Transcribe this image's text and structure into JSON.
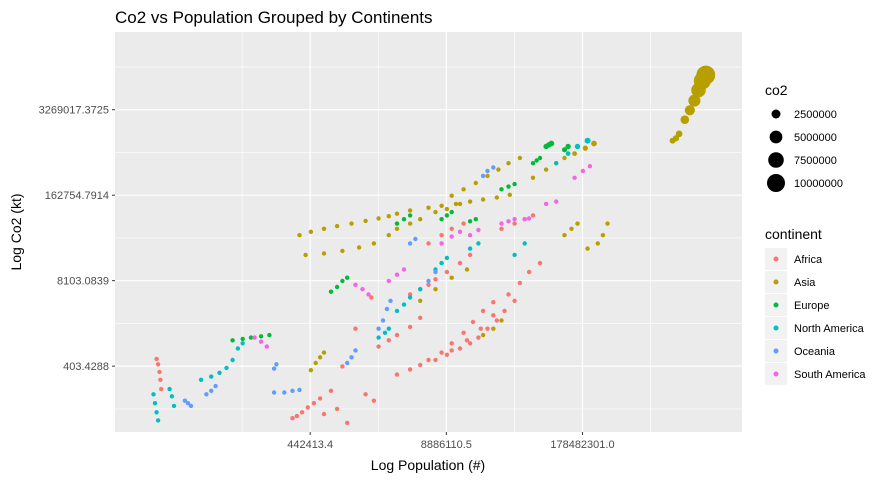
{
  "chart_data": {
    "type": "scatter",
    "title": "Co2 vs Population Grouped by Continents",
    "xlabel": "Log Population (#)",
    "ylabel": "Log Co2 (kt)",
    "x_scale": "log",
    "y_scale": "log",
    "xlim": [
      6000,
      6000000000
    ],
    "ylim": [
      40,
      50000000
    ],
    "x_ticks": [
      {
        "value": 442413.4,
        "label": "442413.4"
      },
      {
        "value": 8886110.5,
        "label": "8886110.5"
      },
      {
        "value": 178482301.0,
        "label": "178482301.0"
      }
    ],
    "y_ticks": [
      {
        "value": 403.4288,
        "label": "403.4288"
      },
      {
        "value": 8103.0839,
        "label": "8103.0839"
      },
      {
        "value": 162754.7914,
        "label": "162754.7914"
      },
      {
        "value": 3269017.3725,
        "label": "3269017.3725"
      }
    ],
    "grid": true,
    "size_legend": {
      "title": "co2",
      "entries": [
        {
          "value": 2500000,
          "label": "2500000"
        },
        {
          "value": 5000000,
          "label": "5000000"
        },
        {
          "value": 7500000,
          "label": "7500000"
        },
        {
          "value": 10000000,
          "label": "10000000"
        }
      ]
    },
    "color_legend": {
      "title": "continent",
      "placement": "right"
    },
    "series": [
      {
        "name": "Africa",
        "color": "#F8766D",
        "points": [
          [
            15000,
            520
          ],
          [
            15500,
            430
          ],
          [
            16000,
            330
          ],
          [
            16300,
            250
          ],
          [
            16600,
            180
          ],
          [
            300000,
            65
          ],
          [
            330000,
            70
          ],
          [
            370000,
            80
          ],
          [
            420000,
            95
          ],
          [
            480000,
            110
          ],
          [
            550000,
            130
          ],
          [
            700000,
            170
          ],
          [
            900000,
            400
          ],
          [
            1200000,
            1500
          ],
          [
            1700000,
            4500
          ],
          [
            2000000,
            800
          ],
          [
            2500000,
            1000
          ],
          [
            3000000,
            1200
          ],
          [
            4000000,
            1600
          ],
          [
            5000000,
            2200
          ],
          [
            3000000,
            300
          ],
          [
            4000000,
            360
          ],
          [
            5000000,
            420
          ],
          [
            6000000,
            500
          ],
          [
            8000000,
            650
          ],
          [
            10000000,
            900
          ],
          [
            13000000,
            1300
          ],
          [
            16000000,
            1900
          ],
          [
            20000000,
            2800
          ],
          [
            25000000,
            3800
          ],
          [
            7000000,
            500
          ],
          [
            9000000,
            600
          ],
          [
            12000000,
            750
          ],
          [
            15000000,
            900
          ],
          [
            18000000,
            1100
          ],
          [
            22000000,
            1500
          ],
          [
            27000000,
            2000
          ],
          [
            32000000,
            2800
          ],
          [
            40000000,
            4000
          ],
          [
            10000000,
            700
          ],
          [
            14000000,
            1000
          ],
          [
            19000000,
            1500
          ],
          [
            25000000,
            2400
          ],
          [
            35000000,
            5000
          ],
          [
            45000000,
            7500
          ],
          [
            55000000,
            11000
          ],
          [
            70000000,
            15000
          ],
          [
            4000000,
            5000
          ],
          [
            5000000,
            6000
          ],
          [
            6000000,
            7000
          ],
          [
            7000000,
            8500
          ],
          [
            9000000,
            11000
          ],
          [
            12000000,
            15000
          ],
          [
            15000000,
            20000
          ],
          [
            1500000,
            150
          ],
          [
            1800000,
            120
          ],
          [
            800000,
            90
          ],
          [
            600000,
            75
          ],
          [
            1000000,
            55
          ],
          [
            6000000,
            30000
          ],
          [
            8000000,
            40000
          ],
          [
            10000000,
            50000
          ],
          [
            13000000,
            60000
          ],
          [
            30000000,
            50000
          ],
          [
            40000000,
            60000
          ],
          [
            50000000,
            70000
          ],
          [
            60000000,
            80000
          ]
        ]
      },
      {
        "name": "Asia",
        "color": "#B79F00",
        "points": [
          [
            350000,
            40000
          ],
          [
            450000,
            45000
          ],
          [
            600000,
            50000
          ],
          [
            800000,
            55000
          ],
          [
            1100000,
            60000
          ],
          [
            1500000,
            66000
          ],
          [
            2000000,
            72000
          ],
          [
            2500000,
            78000
          ],
          [
            3000000,
            85000
          ],
          [
            400000,
            20000
          ],
          [
            600000,
            21000
          ],
          [
            900000,
            23000
          ],
          [
            1300000,
            26000
          ],
          [
            1800000,
            30000
          ],
          [
            4000000,
            95000
          ],
          [
            6000000,
            105000
          ],
          [
            8000000,
            112000
          ],
          [
            11000000,
            120000
          ],
          [
            15000000,
            130000
          ],
          [
            20000000,
            140000
          ],
          [
            27000000,
            150000
          ],
          [
            36000000,
            165000
          ],
          [
            450000,
            350
          ],
          [
            500000,
            450
          ],
          [
            550000,
            550
          ],
          [
            600000,
            650
          ],
          [
            2500000,
            40000
          ],
          [
            3000000,
            50000
          ],
          [
            4000000,
            60000
          ],
          [
            5000000,
            70000
          ],
          [
            7000000,
            90000
          ],
          [
            9000000,
            100000
          ],
          [
            12000000,
            120000
          ],
          [
            10000000,
            160000
          ],
          [
            13000000,
            200000
          ],
          [
            17000000,
            250000
          ],
          [
            22000000,
            320000
          ],
          [
            28000000,
            400000
          ],
          [
            35000000,
            500000
          ],
          [
            45000000,
            600000
          ],
          [
            60000000,
            300000
          ],
          [
            80000000,
            400000
          ],
          [
            100000000,
            500000
          ],
          [
            120000000,
            600000
          ],
          [
            150000000,
            700000
          ],
          [
            190000000,
            850000
          ],
          [
            230000000,
            1000000
          ],
          [
            200000000,
            25000
          ],
          [
            250000000,
            30000
          ],
          [
            280000000,
            40000
          ],
          [
            310000000,
            60000
          ],
          [
            120000000,
            40000
          ],
          [
            140000000,
            50000
          ],
          [
            160000000,
            60000
          ],
          [
            1500000000,
            1400000
          ],
          [
            1700000000,
            2300000
          ],
          [
            1900000000,
            3200000
          ],
          [
            2100000000,
            4500000
          ],
          [
            2300000000,
            6500000
          ],
          [
            2500000000,
            9000000
          ],
          [
            2700000000,
            11000000
          ],
          [
            1300000000,
            1100000
          ],
          [
            1400000000,
            1200000
          ],
          [
            5000000,
            4000
          ],
          [
            7000000,
            6000
          ],
          [
            10000000,
            9000
          ],
          [
            14000000,
            12000
          ],
          [
            20000000,
            1200
          ],
          [
            25000000,
            1500
          ],
          [
            30000000,
            2000
          ]
        ]
      },
      {
        "name": "Europe",
        "color": "#00BA38",
        "points": [
          [
            80000,
            1000
          ],
          [
            100000,
            1050
          ],
          [
            120000,
            1100
          ],
          [
            150000,
            1150
          ],
          [
            180000,
            1200
          ],
          [
            700000,
            5500
          ],
          [
            800000,
            6500
          ],
          [
            900000,
            8000
          ],
          [
            1000000,
            9000
          ],
          [
            3000000,
            60000
          ],
          [
            3500000,
            70000
          ],
          [
            4000000,
            80000
          ],
          [
            8000000,
            70000
          ],
          [
            9000000,
            80000
          ],
          [
            10000000,
            90000
          ],
          [
            15000000,
            65000
          ],
          [
            17000000,
            70000
          ],
          [
            30000000,
            200000
          ],
          [
            35000000,
            220000
          ],
          [
            40000000,
            240000
          ],
          [
            60000000,
            500000
          ],
          [
            65000000,
            550000
          ],
          [
            70000000,
            600000
          ],
          [
            80000000,
            900000
          ],
          [
            85000000,
            950000
          ],
          [
            90000000,
            1000000
          ],
          [
            120000000,
            800000
          ],
          [
            130000000,
            900000
          ]
        ]
      },
      {
        "name": "North America",
        "color": "#00BFC4",
        "points": [
          [
            14000,
            150
          ],
          [
            14500,
            110
          ],
          [
            15000,
            80
          ],
          [
            15500,
            60
          ],
          [
            20000,
            180
          ],
          [
            21000,
            140
          ],
          [
            22000,
            100
          ],
          [
            40000,
            250
          ],
          [
            50000,
            280
          ],
          [
            60000,
            320
          ],
          [
            70000,
            380
          ],
          [
            80000,
            500
          ],
          [
            90000,
            750
          ],
          [
            100000,
            900
          ],
          [
            2000000,
            1100
          ],
          [
            2300000,
            1300
          ],
          [
            2500000,
            1500
          ],
          [
            3000000,
            2800
          ],
          [
            3500000,
            3500
          ],
          [
            4000000,
            4500
          ],
          [
            5000000,
            6000
          ],
          [
            7000000,
            12000
          ],
          [
            8000000,
            15000
          ],
          [
            9000000,
            18000
          ],
          [
            15000000,
            25000
          ],
          [
            18000000,
            30000
          ],
          [
            100000000,
            500000
          ],
          [
            130000000,
            700000
          ],
          [
            160000000,
            900000
          ],
          [
            200000000,
            1100000
          ],
          [
            40000000,
            20000
          ],
          [
            50000000,
            30000
          ]
        ]
      },
      {
        "name": "Oceania",
        "color": "#619CFF",
        "points": [
          [
            28000,
            120
          ],
          [
            30000,
            110
          ],
          [
            32000,
            100
          ],
          [
            45000,
            150
          ],
          [
            50000,
            170
          ],
          [
            55000,
            200
          ],
          [
            200000,
            160
          ],
          [
            250000,
            160
          ],
          [
            300000,
            170
          ],
          [
            350000,
            175
          ],
          [
            200000,
            370
          ],
          [
            210000,
            430
          ],
          [
            1000000,
            450
          ],
          [
            1100000,
            550
          ],
          [
            1200000,
            700
          ],
          [
            2000000,
            1500
          ],
          [
            2200000,
            2000
          ],
          [
            2400000,
            3000
          ],
          [
            2600000,
            4000
          ],
          [
            4000000,
            30000
          ],
          [
            4500000,
            35000
          ],
          [
            6000000,
            8000
          ],
          [
            7000000,
            11000
          ],
          [
            20000000,
            320000
          ],
          [
            22000000,
            380000
          ],
          [
            25000000,
            430000
          ]
        ]
      },
      {
        "name": "South America",
        "color": "#F564E3",
        "points": [
          [
            130000,
            1100
          ],
          [
            150000,
            950
          ],
          [
            170000,
            800
          ],
          [
            1200000,
            7000
          ],
          [
            1400000,
            6000
          ],
          [
            1600000,
            5000
          ],
          [
            2500000,
            8000
          ],
          [
            3000000,
            10000
          ],
          [
            3500000,
            12000
          ],
          [
            8000000,
            30000
          ],
          [
            10000000,
            38000
          ],
          [
            12000000,
            45000
          ],
          [
            15000000,
            40000
          ],
          [
            18000000,
            48000
          ],
          [
            30000000,
            60000
          ],
          [
            35000000,
            65000
          ],
          [
            40000000,
            70000
          ],
          [
            50000000,
            70000
          ],
          [
            55000000,
            72000
          ],
          [
            150000000,
            300000
          ],
          [
            180000000,
            380000
          ],
          [
            210000000,
            450000
          ],
          [
            80000000,
            120000
          ],
          [
            100000000,
            130000
          ]
        ]
      }
    ]
  }
}
